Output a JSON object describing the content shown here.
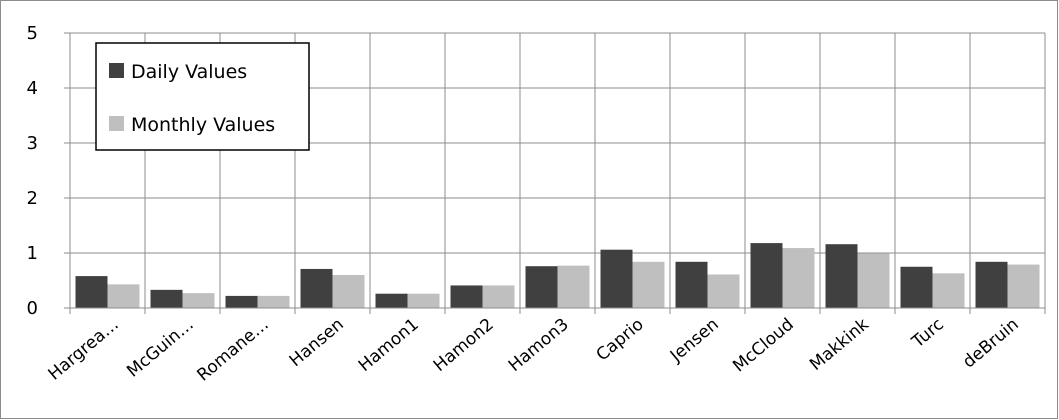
{
  "chart_data": {
    "type": "bar",
    "categories": [
      "Hargrea…",
      "McGuin…",
      "Romane…",
      "Hansen",
      "Hamon1",
      "Hamon2",
      "Hamon3",
      "Caprio",
      "Jensen",
      "McCloud",
      "Makkink",
      "Turc",
      "deBruin"
    ],
    "series": [
      {
        "name": "Daily Values",
        "color": "#404040",
        "values": [
          0.58,
          0.33,
          0.22,
          0.71,
          0.26,
          0.41,
          0.76,
          1.06,
          0.84,
          1.18,
          1.16,
          0.75,
          0.84
        ]
      },
      {
        "name": "Monthly Values",
        "color": "#bfbfbf",
        "values": [
          0.43,
          0.27,
          0.22,
          0.6,
          0.26,
          0.41,
          0.77,
          0.84,
          0.61,
          1.09,
          0.99,
          0.63,
          0.79
        ]
      }
    ],
    "title": "",
    "xlabel": "",
    "ylabel": "",
    "ylim": [
      0,
      5
    ],
    "yticks": [
      "0",
      "1",
      "2",
      "3",
      "4",
      "5"
    ],
    "grid": true,
    "legend_position": "top-left"
  }
}
